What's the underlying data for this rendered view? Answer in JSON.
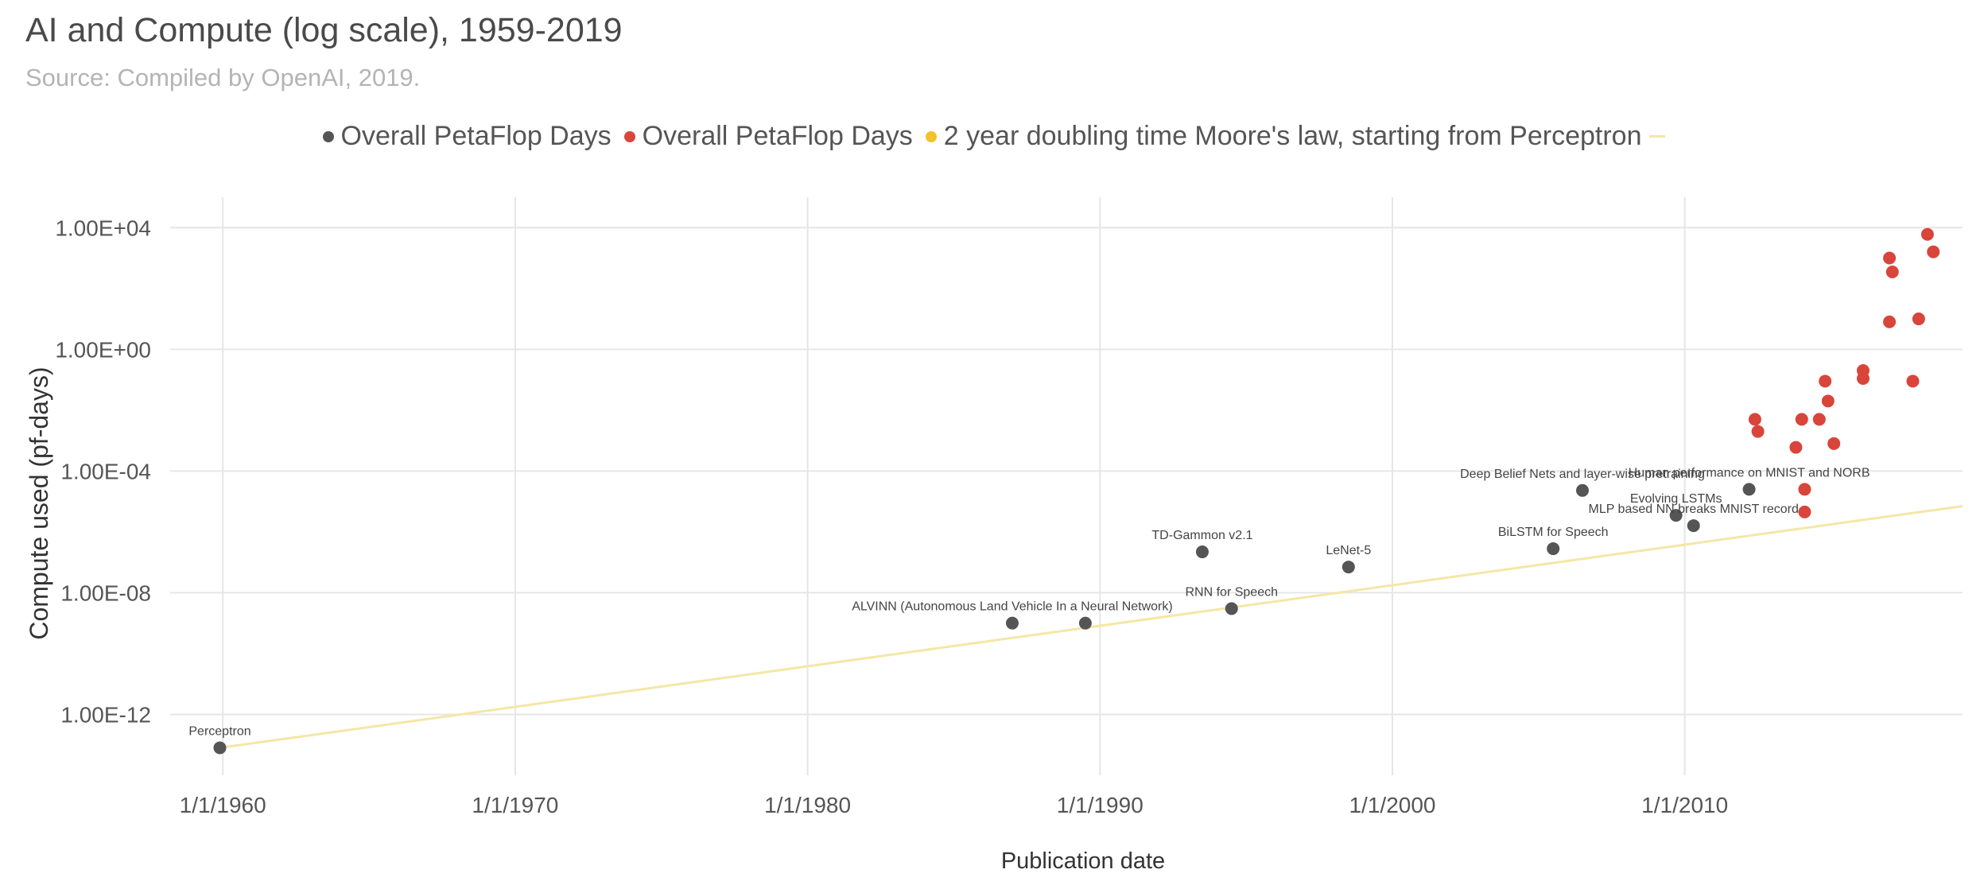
{
  "chart_data": {
    "type": "scatter",
    "title": "AI and Compute (log scale), 1959-2019",
    "subtitle": "Source: Compiled by OpenAI, 2019.",
    "xlabel": "Publication date",
    "ylabel": "Compute used (pf-days)",
    "y_scale": "log10",
    "x_unit": "year",
    "xlim": [
      1958.2,
      2019.5
    ],
    "ylim": [
      1e-14,
      100000.0
    ],
    "x_ticks": [
      {
        "value": 1960,
        "label": "1/1/1960"
      },
      {
        "value": 1970,
        "label": "1/1/1970"
      },
      {
        "value": 1980,
        "label": "1/1/1980"
      },
      {
        "value": 1990,
        "label": "1/1/1990"
      },
      {
        "value": 2000,
        "label": "1/1/2000"
      },
      {
        "value": 2010,
        "label": "1/1/2010"
      }
    ],
    "y_ticks": [
      {
        "value": 10000.0,
        "label": "1.00E+04"
      },
      {
        "value": 1,
        "label": "1.00E+00"
      },
      {
        "value": 0.0001,
        "label": "1.00E-04"
      },
      {
        "value": 1e-08,
        "label": "1.00E-08"
      },
      {
        "value": 1e-12,
        "label": "1.00E-12"
      }
    ],
    "grid": true,
    "legend_position": "top-center",
    "legend": [
      {
        "label": "Overall PetaFlop Days",
        "color": "#555555",
        "marker": "dot"
      },
      {
        "label": "Overall PetaFlop Days",
        "color": "#d9453a",
        "marker": "dot"
      },
      {
        "label": "2 year doubling time Moore's law, starting from Perceptron",
        "color": "#f2c12e",
        "marker": "dot"
      }
    ],
    "legend_trailing_marker": {
      "color": "#f4e7a6",
      "marker": "line"
    },
    "series": [
      {
        "legend_index": 0,
        "color": "#555555",
        "points": [
          {
            "x": 1959.9,
            "y": 8e-14,
            "label": "Perceptron"
          },
          {
            "x": 1987.0,
            "y": 1e-09,
            "label": "ALVINN (Autonomous Land Vehicle In a Neural Network)"
          },
          {
            "x": 1989.5,
            "y": 1e-09
          },
          {
            "x": 1993.5,
            "y": 2.2e-07,
            "label": "TD-Gammon v2.1"
          },
          {
            "x": 1994.5,
            "y": 3e-09,
            "label": "RNN for Speech"
          },
          {
            "x": 1998.5,
            "y": 7e-08,
            "label": "LeNet-5"
          },
          {
            "x": 2005.5,
            "y": 2.8e-07,
            "label": "BiLSTM for Speech"
          },
          {
            "x": 2006.5,
            "y": 2.3e-05,
            "label": "Deep Belief Nets and layer-wise pretraining"
          },
          {
            "x": 2009.7,
            "y": 3.5e-06,
            "label": "Evolving LSTMs"
          },
          {
            "x": 2010.3,
            "y": 1.6e-06,
            "label": "MLP based NN breaks MNIST record"
          },
          {
            "x": 2012.2,
            "y": 2.5e-05,
            "label": "Human performance on MNIST and NORB"
          }
        ]
      },
      {
        "legend_index": 1,
        "color": "#d9453a",
        "points": [
          {
            "x": 2012.4,
            "y": 0.005
          },
          {
            "x": 2012.5,
            "y": 0.002
          },
          {
            "x": 2013.8,
            "y": 0.0006
          },
          {
            "x": 2014.0,
            "y": 0.005
          },
          {
            "x": 2014.1,
            "y": 2.5e-05
          },
          {
            "x": 2014.1,
            "y": 4.5e-06
          },
          {
            "x": 2014.6,
            "y": 0.005
          },
          {
            "x": 2014.8,
            "y": 0.09
          },
          {
            "x": 2014.9,
            "y": 0.02
          },
          {
            "x": 2015.1,
            "y": 0.0008
          },
          {
            "x": 2016.1,
            "y": 0.2
          },
          {
            "x": 2016.1,
            "y": 0.11
          },
          {
            "x": 2017.0,
            "y": 1000
          },
          {
            "x": 2017.1,
            "y": 350
          },
          {
            "x": 2017.0,
            "y": 8
          },
          {
            "x": 2017.8,
            "y": 0.09
          },
          {
            "x": 2018.0,
            "y": 10
          },
          {
            "x": 2018.3,
            "y": 6000
          },
          {
            "x": 2018.5,
            "y": 1600
          }
        ]
      }
    ],
    "trend_line": {
      "legend_index": 2,
      "color": "#f4e7a6",
      "points": [
        {
          "x": 1959.9,
          "y": 8e-14
        },
        {
          "x": 2019.5,
          "y": 7e-06
        }
      ]
    }
  }
}
